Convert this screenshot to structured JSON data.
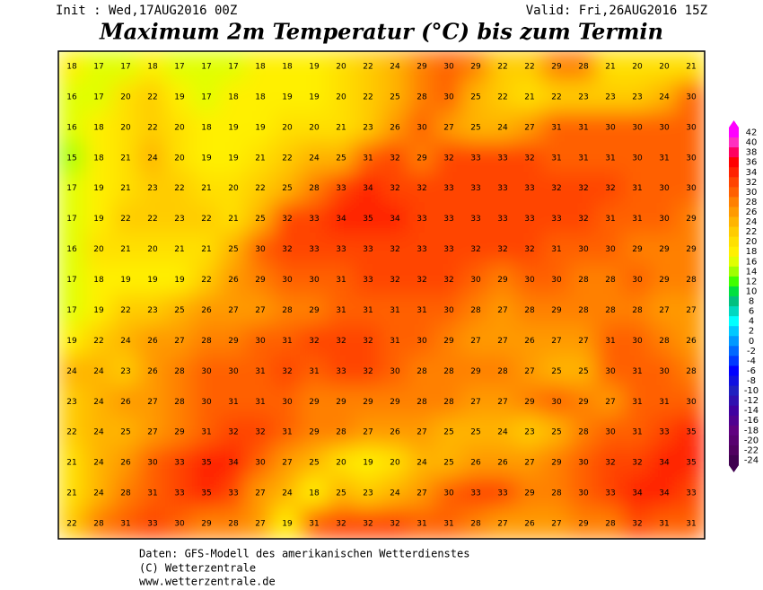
{
  "header": {
    "init": "Init : Wed,17AUG2016 00Z",
    "valid": "Valid: Fri,26AUG2016 15Z",
    "title": "Maximum 2m Temperatur (°C) bis zum Termin"
  },
  "map": {
    "values": [
      [
        18,
        17,
        17,
        18,
        17,
        17,
        17,
        18,
        18,
        19,
        20,
        22,
        24,
        29,
        30,
        29,
        22,
        22,
        29,
        28,
        21,
        20,
        20,
        21
      ],
      [
        16,
        17,
        20,
        22,
        19,
        17,
        18,
        18,
        19,
        19,
        20,
        22,
        25,
        28,
        30,
        25,
        22,
        21,
        22,
        23,
        23,
        23,
        24,
        30
      ],
      [
        16,
        18,
        20,
        22,
        20,
        18,
        19,
        19,
        20,
        20,
        21,
        23,
        26,
        30,
        27,
        25,
        24,
        27,
        31,
        31,
        30,
        30,
        30,
        30
      ],
      [
        15,
        18,
        21,
        24,
        20,
        19,
        19,
        21,
        22,
        24,
        25,
        31,
        32,
        29,
        32,
        33,
        33,
        32,
        31,
        31,
        31,
        30,
        31,
        30
      ],
      [
        17,
        19,
        21,
        23,
        22,
        21,
        20,
        22,
        25,
        28,
        33,
        34,
        32,
        32,
        33,
        33,
        33,
        33,
        32,
        32,
        32,
        31,
        30,
        30
      ],
      [
        17,
        19,
        22,
        22,
        23,
        22,
        21,
        25,
        32,
        33,
        34,
        35,
        34,
        33,
        33,
        33,
        33,
        33,
        33,
        32,
        31,
        31,
        30,
        29
      ],
      [
        16,
        20,
        21,
        20,
        21,
        21,
        25,
        30,
        32,
        33,
        33,
        33,
        32,
        33,
        33,
        32,
        32,
        32,
        31,
        30,
        30,
        29,
        29,
        29
      ],
      [
        17,
        18,
        19,
        19,
        19,
        22,
        26,
        29,
        30,
        30,
        31,
        33,
        32,
        32,
        32,
        30,
        29,
        30,
        30,
        28,
        28,
        30,
        29,
        28
      ],
      [
        17,
        19,
        22,
        23,
        25,
        26,
        27,
        27,
        28,
        29,
        31,
        31,
        31,
        31,
        30,
        28,
        27,
        28,
        29,
        28,
        28,
        28,
        27,
        27
      ],
      [
        19,
        22,
        24,
        26,
        27,
        28,
        29,
        30,
        31,
        32,
        32,
        32,
        31,
        30,
        29,
        27,
        27,
        26,
        27,
        27,
        31,
        30,
        28,
        26
      ],
      [
        24,
        24,
        23,
        26,
        28,
        30,
        30,
        31,
        32,
        31,
        33,
        32,
        30,
        28,
        28,
        29,
        28,
        27,
        25,
        25,
        30,
        31,
        30,
        28
      ],
      [
        23,
        24,
        26,
        27,
        28,
        30,
        31,
        31,
        30,
        29,
        29,
        29,
        29,
        28,
        28,
        27,
        27,
        29,
        30,
        29,
        27,
        31,
        31,
        30
      ],
      [
        22,
        24,
        25,
        27,
        29,
        31,
        32,
        32,
        31,
        29,
        28,
        27,
        26,
        27,
        25,
        25,
        24,
        23,
        25,
        28,
        30,
        31,
        33,
        35
      ],
      [
        21,
        24,
        26,
        30,
        33,
        35,
        34,
        30,
        27,
        25,
        20,
        19,
        20,
        24,
        25,
        26,
        26,
        27,
        29,
        30,
        32,
        32,
        34,
        35
      ],
      [
        21,
        24,
        28,
        31,
        33,
        35,
        33,
        27,
        24,
        18,
        25,
        23,
        24,
        27,
        30,
        33,
        33,
        29,
        28,
        30,
        33,
        34,
        34,
        33
      ],
      [
        22,
        28,
        31,
        33,
        30,
        29,
        28,
        27,
        19,
        31,
        32,
        32,
        32,
        31,
        31,
        28,
        27,
        26,
        27,
        29,
        28,
        32,
        31,
        31
      ]
    ]
  },
  "colorbar": {
    "ticks": [
      42,
      40,
      38,
      36,
      34,
      32,
      30,
      28,
      26,
      24,
      22,
      20,
      18,
      16,
      14,
      12,
      10,
      8,
      6,
      4,
      2,
      0,
      -2,
      -4,
      -6,
      -8,
      -10,
      -12,
      -14,
      -16,
      -18,
      -20,
      -22,
      -24
    ],
    "colors": [
      "#ff00ff",
      "#ff30c0",
      "#ff0060",
      "#ff0000",
      "#ff2200",
      "#ff4400",
      "#ff6000",
      "#ff8000",
      "#ff9a00",
      "#ffb400",
      "#ffcc00",
      "#ffe000",
      "#fff000",
      "#e0ff00",
      "#a0ff00",
      "#40ff00",
      "#00e040",
      "#00c080",
      "#00d8c0",
      "#00ffff",
      "#00c8ff",
      "#0098ff",
      "#0068ff",
      "#0038ff",
      "#0000ff",
      "#1010e0",
      "#2020c0",
      "#3010b0",
      "#4000a0",
      "#500090",
      "#600080",
      "#580070",
      "#500060",
      "#400050"
    ]
  },
  "footer": {
    "lines": [
      "Daten: GFS-Modell des amerikanischen Wetterdienstes",
      "(C) Wetterzentrale",
      "www.wetterzentrale.de"
    ]
  }
}
